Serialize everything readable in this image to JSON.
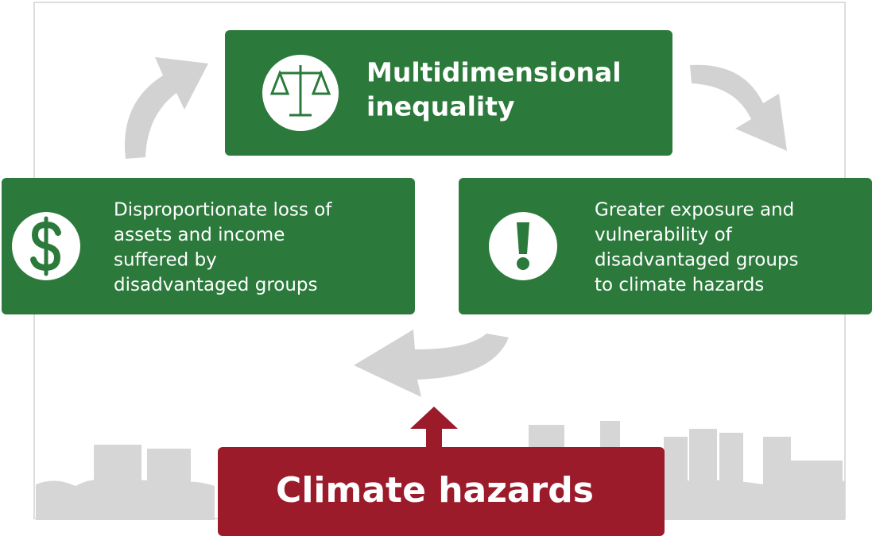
{
  "nodes": [
    {
      "id": "inequality",
      "lines": [
        "Multidimensional",
        "inequality"
      ]
    },
    {
      "id": "loss",
      "lines": [
        "Disproportionate loss of",
        "assets and income",
        "suffered by",
        "disadvantaged groups"
      ]
    },
    {
      "id": "exposure",
      "lines": [
        "Greater exposure and",
        "vulnerability of",
        "disadvantaged groups",
        "to climate hazards"
      ]
    },
    {
      "id": "hazards",
      "lines": [
        "Climate hazards"
      ]
    }
  ]
}
